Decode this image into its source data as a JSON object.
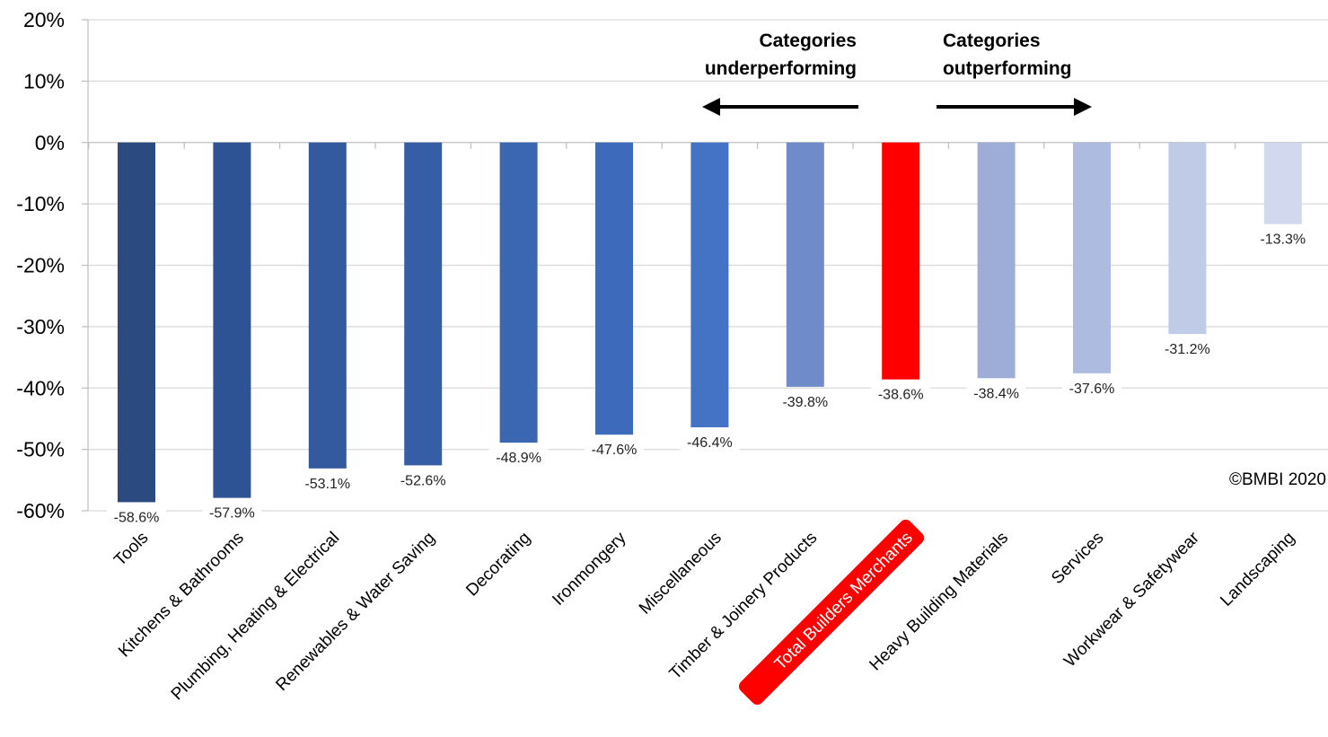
{
  "chart_data": {
    "type": "bar",
    "categories": [
      "Tools",
      "Kitchens & Bathrooms",
      "Plumbing, Heating & Electrical",
      "Renewables & Water Saving",
      "Decorating",
      "Ironmongery",
      "Miscellaneous",
      "Timber & Joinery Products",
      "Total Builders Merchants",
      "Heavy Building Materials",
      "Services",
      "Workwear & Safetywear",
      "Landscaping"
    ],
    "values": [
      -58.6,
      -57.9,
      -53.1,
      -52.6,
      -48.9,
      -47.6,
      -46.4,
      -39.8,
      -38.6,
      -38.4,
      -37.6,
      -31.2,
      -13.3
    ],
    "value_labels": [
      "-58.6%",
      "-57.9%",
      "-53.1%",
      "-52.6%",
      "-48.9%",
      "-47.6%",
      "-46.4%",
      "-39.8%",
      "-38.6%",
      "-38.4%",
      "-37.6%",
      "-31.2%",
      "-13.3%"
    ],
    "bar_colors": [
      "#2A4A80",
      "#2E5394",
      "#33599E",
      "#365EA6",
      "#3A66B2",
      "#3D6ABB",
      "#4472C4",
      "#6F8BCA",
      "#FF0000",
      "#9DADD8",
      "#ADBBE0",
      "#C0CBE7",
      "#D2D9EE"
    ],
    "highlight_category": "Total Builders Merchants",
    "highlight_color": "#FF0000",
    "y_ticks": [
      20,
      10,
      0,
      -10,
      -20,
      -30,
      -40,
      -50,
      -60
    ],
    "y_tick_labels": [
      "20%",
      "10%",
      "0%",
      "-10%",
      "-20%",
      "-30%",
      "-40%",
      "-50%",
      "-60%"
    ],
    "ylim": [
      -60,
      20
    ],
    "grid": true,
    "annotations": {
      "left": [
        "Categories",
        "underperforming"
      ],
      "right": [
        "Categories",
        "outperforming"
      ]
    },
    "copyright": "©BMBI 2020"
  }
}
